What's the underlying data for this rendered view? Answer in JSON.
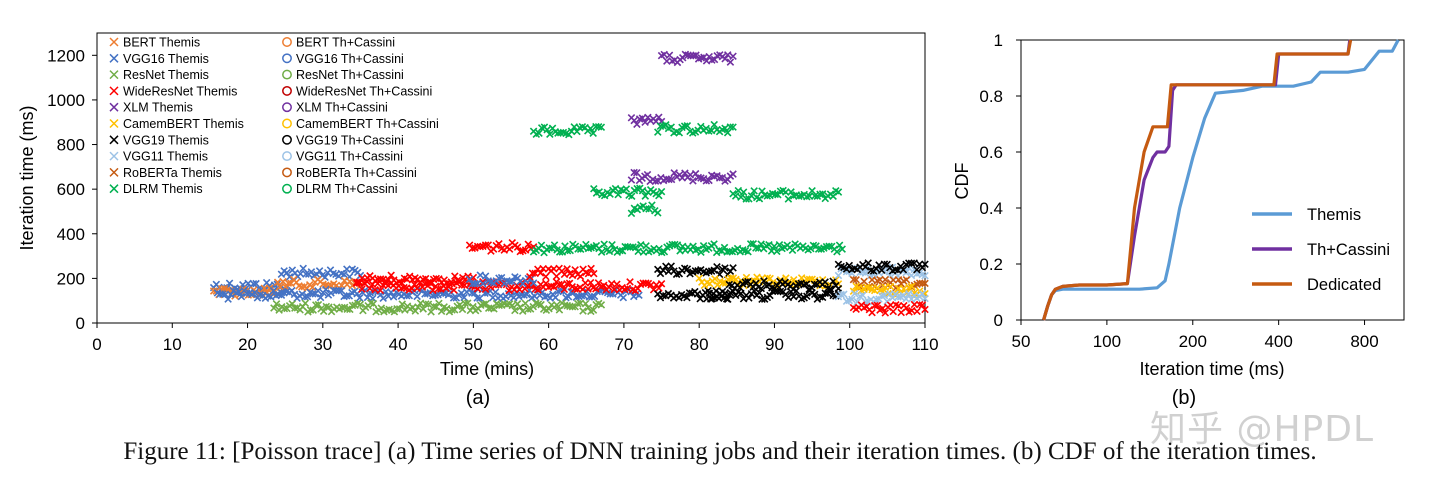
{
  "caption": "Figure 11: [Poisson trace] (a) Time series of DNN training jobs and their iteration times. (b) CDF of the iteration times.",
  "watermark": "知乎 @HPDL",
  "chart_data": [
    {
      "type": "scatter",
      "panel_label": "(a)",
      "xlabel": "Time (mins)",
      "ylabel": "Iteration time (ms)",
      "xlim": [
        0,
        110
      ],
      "ylim": [
        0,
        1300
      ],
      "xticks": [
        "0",
        "10",
        "20",
        "30",
        "40",
        "50",
        "60",
        "70",
        "80",
        "90",
        "100",
        "110"
      ],
      "yticks": [
        "0",
        "200",
        "400",
        "600",
        "800",
        "1000",
        "1200"
      ],
      "legend": [
        {
          "label": "BERT Themis",
          "marker": "x",
          "color": "#ED7D31"
        },
        {
          "label": "BERT Th+Cassini",
          "marker": "o",
          "color": "#ED7D31"
        },
        {
          "label": "VGG16 Themis",
          "marker": "x",
          "color": "#4472C4"
        },
        {
          "label": "VGG16 Th+Cassini",
          "marker": "o",
          "color": "#4472C4"
        },
        {
          "label": "ResNet Themis",
          "marker": "x",
          "color": "#70AD47"
        },
        {
          "label": "ResNet Th+Cassini",
          "marker": "o",
          "color": "#70AD47"
        },
        {
          "label": "WideResNet Themis",
          "marker": "x",
          "color": "#FF0000"
        },
        {
          "label": "WideResNet Th+Cassini",
          "marker": "o",
          "color": "#C00000"
        },
        {
          "label": "XLM Themis",
          "marker": "x",
          "color": "#7030A0"
        },
        {
          "label": "XLM Th+Cassini",
          "marker": "o",
          "color": "#7030A0"
        },
        {
          "label": "CamemBERT Themis",
          "marker": "x",
          "color": "#FFC000"
        },
        {
          "label": "CamemBERT Th+Cassini",
          "marker": "o",
          "color": "#FFC000"
        },
        {
          "label": "VGG19 Themis",
          "marker": "x",
          "color": "#000000"
        },
        {
          "label": "VGG19 Th+Cassini",
          "marker": "o",
          "color": "#000000"
        },
        {
          "label": "VGG11 Themis",
          "marker": "x",
          "color": "#9DC3E6"
        },
        {
          "label": "VGG11 Th+Cassini",
          "marker": "o",
          "color": "#9DC3E6"
        },
        {
          "label": "RoBERTa Themis",
          "marker": "x",
          "color": "#C55A11"
        },
        {
          "label": "RoBERTa Th+Cassini",
          "marker": "o",
          "color": "#C55A11"
        },
        {
          "label": "DLRM Themis",
          "marker": "x",
          "color": "#00B050"
        },
        {
          "label": "DLRM Th+Cassini",
          "marker": "o",
          "color": "#00B050"
        }
      ],
      "segments": [
        {
          "job": "VGG16 Themis",
          "color": "#4472C4",
          "x0": 15.5,
          "x1": 25,
          "y": 165
        },
        {
          "job": "BERT Th+Cassini",
          "color": "#ED7D31",
          "x0": 15.5,
          "x1": 24,
          "y": 140
        },
        {
          "job": "VGG16 Th+Cassini",
          "color": "#4472C4",
          "x0": 16,
          "x1": 24.5,
          "y": 125
        },
        {
          "job": "VGG16 Themis",
          "color": "#4472C4",
          "x0": 24.5,
          "x1": 35,
          "y": 225
        },
        {
          "job": "BERT Themis",
          "color": "#ED7D31",
          "x0": 24,
          "x1": 35,
          "y": 175
        },
        {
          "job": "VGG16 Th+Cassini",
          "color": "#4472C4",
          "x0": 24.5,
          "x1": 72,
          "y": 130
        },
        {
          "job": "ResNet Th+Cassini",
          "color": "#70AD47",
          "x0": 23.5,
          "x1": 67,
          "y": 70
        },
        {
          "job": "WideResNet Themis",
          "color": "#FF0000",
          "x0": 34.5,
          "x1": 50,
          "y": 195
        },
        {
          "job": "WideResNet Th+Cassini",
          "color": "#FF0000",
          "x0": 34.5,
          "x1": 75,
          "y": 165
        },
        {
          "job": "WideResNet Themis",
          "color": "#FF0000",
          "x0": 49.5,
          "x1": 58,
          "y": 340
        },
        {
          "job": "VGG16 Themis",
          "color": "#4472C4",
          "x0": 49.5,
          "x1": 58,
          "y": 195
        },
        {
          "job": "DLRM Th+Cassini",
          "color": "#00B050",
          "x0": 58,
          "x1": 99,
          "y": 335
        },
        {
          "job": "WideResNet Themis",
          "color": "#FF0000",
          "x0": 57.5,
          "x1": 66,
          "y": 225
        },
        {
          "job": "DLRM Themis",
          "color": "#00B050",
          "x0": 58,
          "x1": 67,
          "y": 860
        },
        {
          "job": "DLRM Themis",
          "color": "#00B050",
          "x0": 66,
          "x1": 75,
          "y": 585
        },
        {
          "job": "DLRM Themis",
          "color": "#00B050",
          "x0": 71,
          "x1": 74.5,
          "y": 510
        },
        {
          "job": "XLM Themis",
          "color": "#7030A0",
          "x0": 71,
          "x1": 75,
          "y": 910
        },
        {
          "job": "DLRM Themis",
          "color": "#00B050",
          "x0": 74.5,
          "x1": 84.5,
          "y": 870
        },
        {
          "job": "XLM Themis",
          "color": "#7030A0",
          "x0": 75,
          "x1": 84.5,
          "y": 1185
        },
        {
          "job": "XLM Th+Cassini",
          "color": "#7030A0",
          "x0": 71,
          "x1": 84.5,
          "y": 655
        },
        {
          "job": "DLRM Themis",
          "color": "#00B050",
          "x0": 84.5,
          "x1": 98.5,
          "y": 575
        },
        {
          "job": "VGG19 Themis",
          "color": "#000000",
          "x0": 74.5,
          "x1": 84.5,
          "y": 235
        },
        {
          "job": "VGG19 Th+Cassini",
          "color": "#000000",
          "x0": 74.5,
          "x1": 84,
          "y": 125
        },
        {
          "job": "CamemBERT Themis",
          "color": "#FFC000",
          "x0": 80,
          "x1": 98.5,
          "y": 185
        },
        {
          "job": "VGG19 Themis",
          "color": "#000000",
          "x0": 84,
          "x1": 98.5,
          "y": 170
        },
        {
          "job": "VGG19 Th+Cassini",
          "color": "#000000",
          "x0": 81,
          "x1": 98.5,
          "y": 125
        },
        {
          "job": "VGG11 Th+Cassini",
          "color": "#9DC3E6",
          "x0": 98.5,
          "x1": 110,
          "y": 230
        },
        {
          "job": "VGG19 Themis",
          "color": "#000000",
          "x0": 98.5,
          "x1": 110,
          "y": 250
        },
        {
          "job": "RoBERTa Th+Cassini",
          "color": "#C55A11",
          "x0": 100.5,
          "x1": 110,
          "y": 175
        },
        {
          "job": "CamemBERT Th+Cassini",
          "color": "#FFC000",
          "x0": 100.5,
          "x1": 110,
          "y": 145
        },
        {
          "job": "VGG11 Th+Cassini",
          "color": "#9DC3E6",
          "x0": 98.5,
          "x1": 110,
          "y": 115
        },
        {
          "job": "WideResNet Th+Cassini",
          "color": "#FF0000",
          "x0": 100.5,
          "x1": 110,
          "y": 65
        }
      ]
    },
    {
      "type": "line",
      "panel_label": "(b)",
      "xlabel": "Iteration time (ms)",
      "ylabel": "CDF",
      "xscale": "log",
      "xlim": [
        50,
        1100
      ],
      "ylim": [
        0,
        1
      ],
      "xticks": [
        "50",
        "100",
        "200",
        "400",
        "800"
      ],
      "xtick_values": [
        50,
        100,
        200,
        400,
        800
      ],
      "yticks": [
        "0",
        "0.2",
        "0.4",
        "0.6",
        "0.8",
        "1"
      ],
      "legend_position": "bottom-right",
      "series": [
        {
          "name": "Themis",
          "color": "#5B9BD5",
          "x": [
            60,
            62,
            64,
            66,
            70,
            80,
            100,
            130,
            150,
            160,
            165,
            180,
            200,
            220,
            240,
            300,
            350,
            450,
            520,
            560,
            700,
            800,
            900,
            1000,
            1050
          ],
          "y": [
            0,
            0.05,
            0.09,
            0.105,
            0.11,
            0.11,
            0.11,
            0.11,
            0.115,
            0.14,
            0.2,
            0.4,
            0.58,
            0.72,
            0.81,
            0.82,
            0.835,
            0.835,
            0.85,
            0.885,
            0.885,
            0.895,
            0.96,
            0.96,
            1.0
          ]
        },
        {
          "name": "Th+Cassini",
          "color": "#7030A0",
          "x": [
            60,
            62,
            64,
            66,
            70,
            80,
            100,
            118,
            125,
            135,
            145,
            150,
            155,
            160,
            165,
            170,
            175,
            200,
            300,
            390,
            400,
            700,
            710
          ],
          "y": [
            0,
            0.05,
            0.09,
            0.11,
            0.12,
            0.125,
            0.125,
            0.13,
            0.3,
            0.5,
            0.58,
            0.6,
            0.6,
            0.6,
            0.62,
            0.82,
            0.84,
            0.84,
            0.84,
            0.84,
            0.95,
            0.95,
            1.0
          ]
        },
        {
          "name": "Dedicated",
          "color": "#C55A11",
          "x": [
            60,
            62,
            64,
            66,
            70,
            80,
            100,
            118,
            125,
            135,
            145,
            150,
            160,
            163,
            168,
            175,
            200,
            300,
            385,
            395,
            700,
            715
          ],
          "y": [
            0,
            0.05,
            0.09,
            0.11,
            0.12,
            0.125,
            0.125,
            0.13,
            0.4,
            0.6,
            0.69,
            0.69,
            0.69,
            0.69,
            0.84,
            0.84,
            0.84,
            0.84,
            0.84,
            0.95,
            0.95,
            1.0
          ]
        }
      ]
    }
  ]
}
